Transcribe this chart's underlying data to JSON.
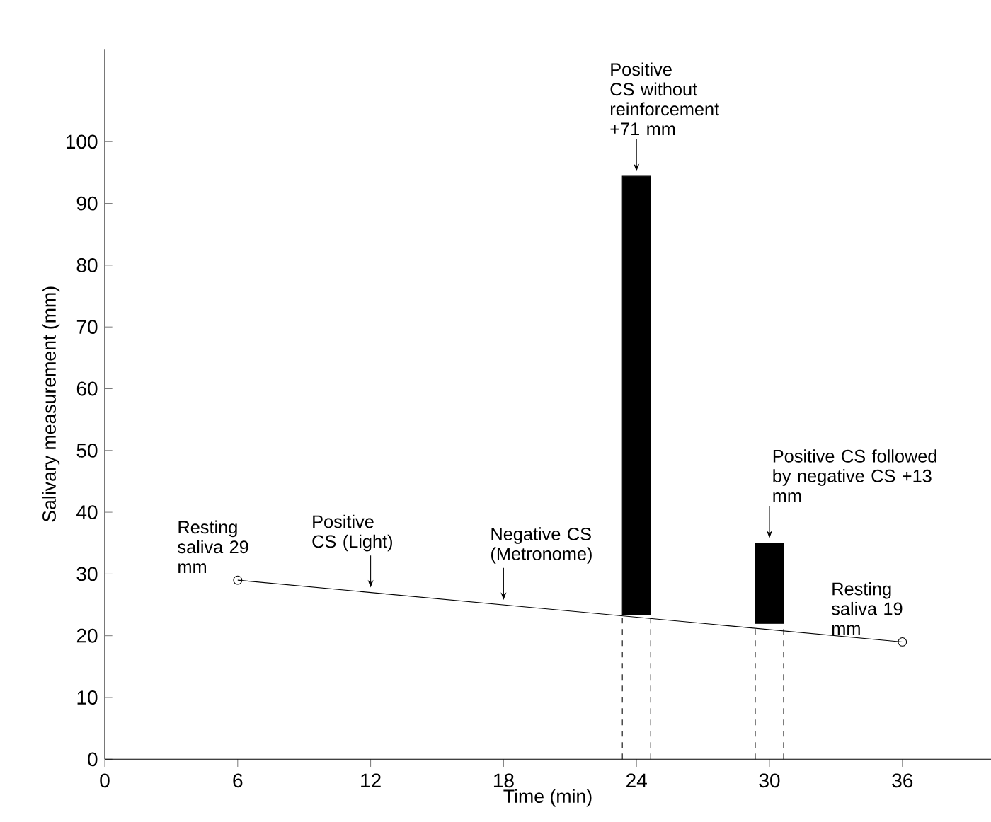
{
  "chart_data": {
    "type": "line",
    "xlabel": "Time (min)",
    "ylabel": "Salivary measurement (mm)",
    "xlim": [
      0,
      40
    ],
    "ylim": [
      0,
      115
    ],
    "xticks": [
      0,
      6,
      12,
      18,
      24,
      30,
      36
    ],
    "yticks": [
      0,
      10,
      20,
      30,
      40,
      50,
      60,
      70,
      80,
      90,
      100
    ],
    "marker": "circle",
    "series": [
      {
        "x": [
          6,
          36
        ],
        "values": [
          29,
          19
        ],
        "color": "#000000"
      },
      {
        "type": "bar",
        "x": [
          24,
          30
        ],
        "base": [
          23.4,
          22
        ],
        "values": [
          71,
          13
        ],
        "color": "#000000"
      },
      {
        "x": [
          23.36,
          23.36
        ],
        "values": [
          0,
          23.4
        ],
        "color": "#000000",
        "line_style": "dashed",
        "marker": "none"
      },
      {
        "x": [
          24.64,
          24.64
        ],
        "values": [
          0,
          23.4
        ],
        "color": "#000000",
        "line_style": "dashed",
        "marker": "none"
      },
      {
        "x": [
          29.36,
          29.36
        ],
        "values": [
          0,
          22
        ],
        "color": "#000000",
        "line_style": "dashed",
        "marker": "none"
      },
      {
        "x": [
          30.64,
          30.64
        ],
        "values": [
          0,
          22
        ],
        "color": "#000000",
        "line_style": "dashed",
        "marker": "none"
      }
    ],
    "annotations": [
      {
        "text": "Resting saliva 29 mm",
        "x": 6,
        "y": 29
      },
      {
        "text": "Positive CS (Light)",
        "x": 12,
        "y": 27
      },
      {
        "text": "Negative CS (Metronome)",
        "x": 18,
        "y": 25
      },
      {
        "text": "Positive CS without reinforcement +71 mm",
        "x": 24,
        "y": 94.4
      },
      {
        "text": "Positive CS followed by negative CS +13 mm",
        "x": 30,
        "y": 35
      },
      {
        "text": "Resting saliva 19 mm",
        "x": 36,
        "y": 19
      }
    ]
  }
}
